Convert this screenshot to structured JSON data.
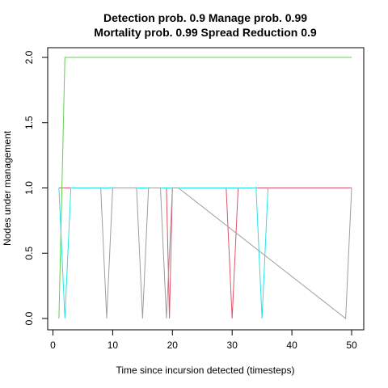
{
  "chart_data": {
    "type": "line",
    "title_line1": "Detection prob. 0.9 Manage prob. 0.99",
    "title_line2": "Mortality prob. 0.99 Spread Reduction 0.9",
    "xlabel": "Time since incursion detected (timesteps)",
    "ylabel": "Nodes under management",
    "xlim": [
      0,
      50
    ],
    "ylim": [
      0,
      2
    ],
    "x_ticks": [
      0,
      10,
      20,
      30,
      40,
      50
    ],
    "y_ticks": [
      "0.0",
      "0.5",
      "1.0",
      "1.5",
      "2.0"
    ],
    "grid": false,
    "series": [
      {
        "color": "#000000",
        "x": [
          1,
          18.5,
          20,
          50
        ],
        "y": [
          1,
          1,
          1,
          1
        ]
      },
      {
        "color": "#DF536B",
        "x": [
          1,
          19,
          19.5,
          20,
          29,
          30,
          31,
          50
        ],
        "y": [
          1,
          1,
          0,
          1,
          1,
          0,
          1,
          1
        ]
      },
      {
        "color": "#61D04F",
        "x": [
          1,
          2,
          50
        ],
        "y": [
          0,
          2,
          2
        ]
      },
      {
        "color": "#28E2E5",
        "x": [
          1,
          2,
          3,
          34,
          35,
          36
        ],
        "y": [
          1,
          0,
          1,
          1,
          0,
          1
        ]
      },
      {
        "color": "#9E9E9E",
        "x": [
          8,
          9,
          10,
          14,
          15,
          16,
          18,
          19,
          20,
          21,
          49,
          50
        ],
        "y": [
          1,
          0,
          1,
          1,
          0,
          1,
          1,
          0,
          1,
          1,
          0,
          1
        ]
      }
    ]
  }
}
